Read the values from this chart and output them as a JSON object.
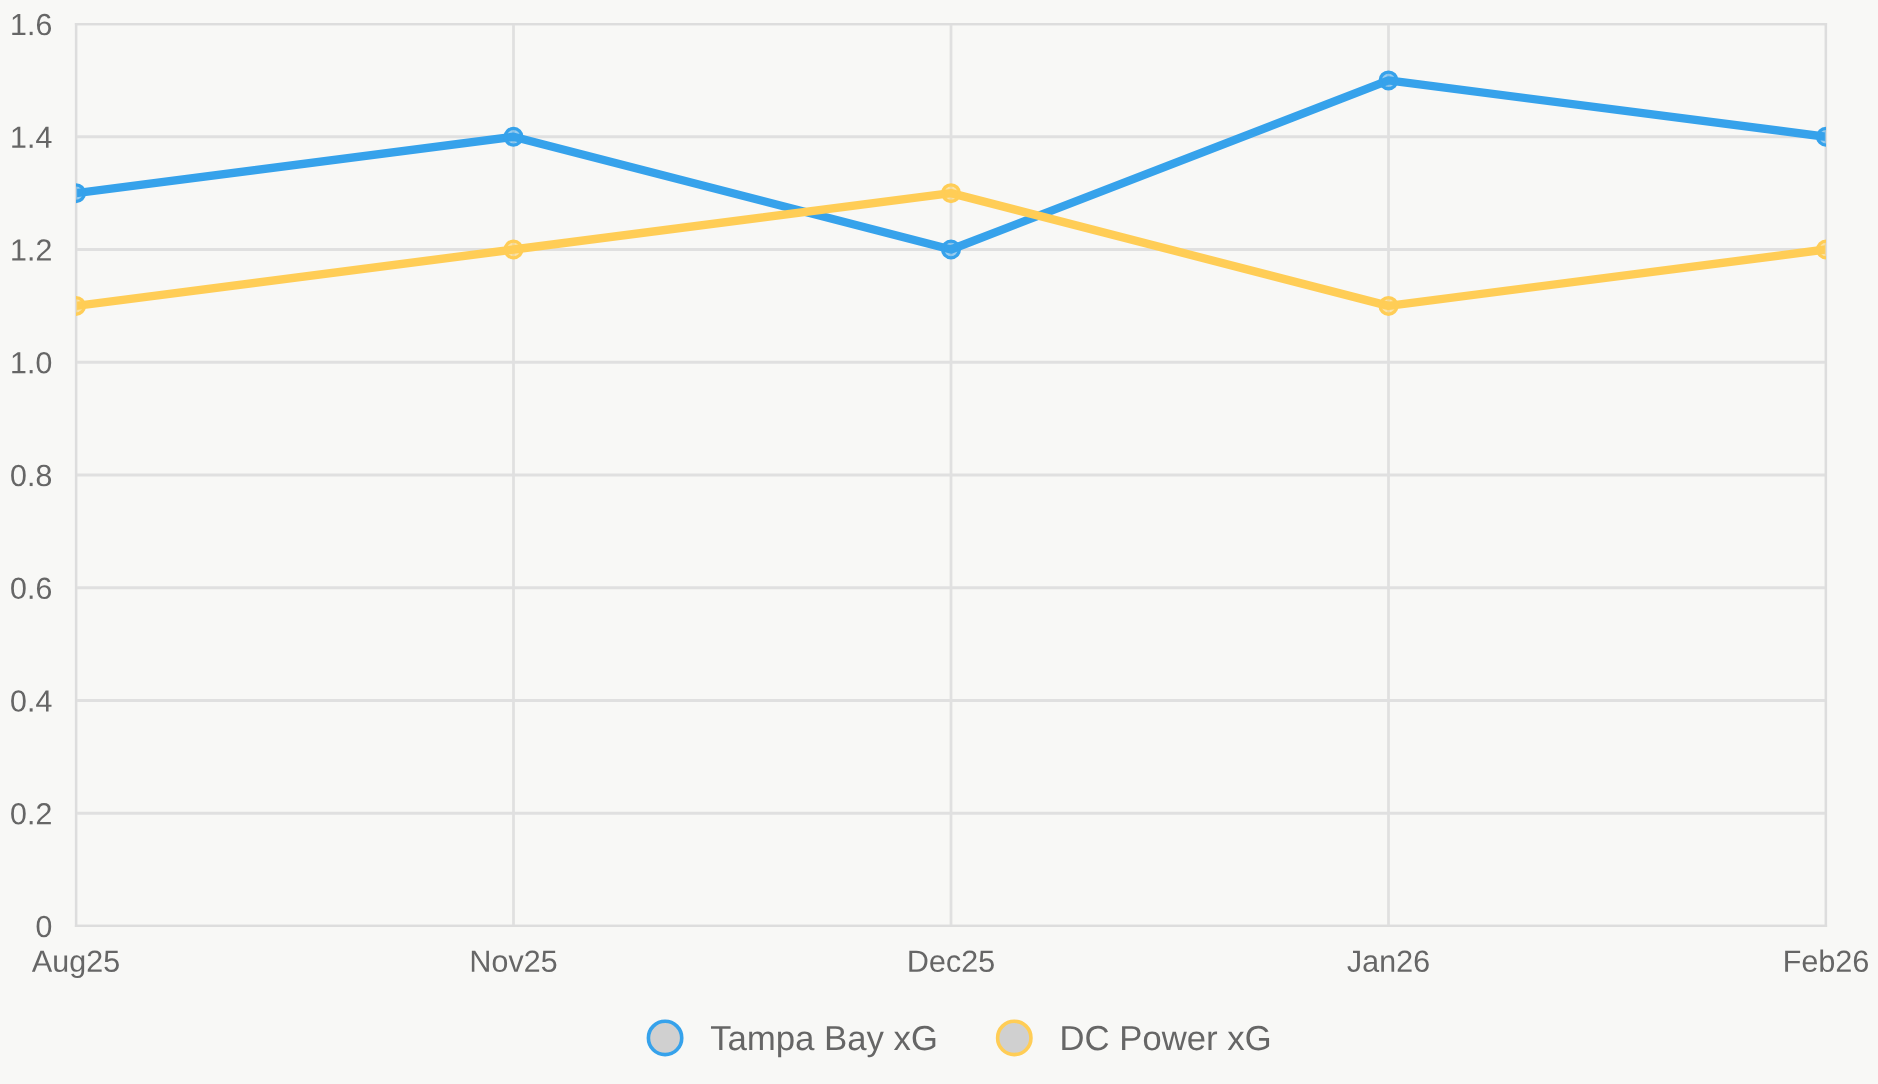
{
  "chart_data": {
    "type": "line",
    "categories": [
      "Aug25",
      "Nov25",
      "Dec25",
      "Jan26",
      "Feb26"
    ],
    "series": [
      {
        "name": "Tampa Bay xG",
        "color": "#36a2eb",
        "values": [
          1.3,
          1.4,
          1.2,
          1.5,
          1.4
        ]
      },
      {
        "name": "DC Power xG",
        "color": "#ffcd56",
        "values": [
          1.1,
          1.2,
          1.3,
          1.1,
          1.2
        ]
      }
    ],
    "ylim": [
      0,
      1.6
    ],
    "yticks": [
      0,
      0.2,
      0.4,
      0.6,
      0.8,
      {
        "value": 1.0,
        "label": "1.0"
      },
      1.2,
      1.4,
      1.6
    ],
    "grid": true,
    "legend": "bottom",
    "marker": "circle",
    "line_style": "solid"
  }
}
